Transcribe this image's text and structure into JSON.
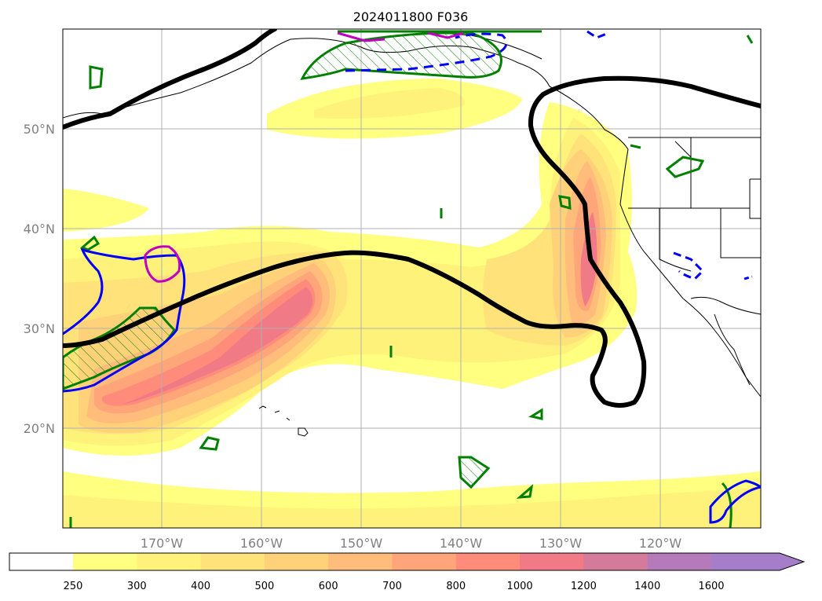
{
  "title": "2024011800 F036",
  "map": {
    "lon_range": [
      -180,
      -110
    ],
    "lat_range": [
      10,
      60
    ],
    "lon_ticks": [
      "170°W",
      "160°W",
      "150°W",
      "140°W",
      "130°W",
      "120°W"
    ],
    "lat_ticks": [
      "50°N",
      "40°N",
      "30°N",
      "20°N"
    ],
    "gridlines": true
  },
  "colorbar": {
    "labels": [
      "250",
      "300",
      "400",
      "500",
      "600",
      "700",
      "800",
      "1000",
      "1200",
      "1400",
      "1600"
    ],
    "colors": [
      "#ffffff",
      "#ffff80",
      "#fff27a",
      "#ffe37a",
      "#ffd27a",
      "#ffbc7a",
      "#ffa57a",
      "#ff8c7a",
      "#f07a85",
      "#d47a9a",
      "#b47ab9",
      "#a67dc9"
    ],
    "extend": "max"
  },
  "colors": {
    "contour_line": "#000000",
    "solid_green": "#008000",
    "dashed_blue": "#0000ff",
    "magenta": "#c000c0",
    "coastline": "#000000",
    "grid": "#b0b0b0"
  }
}
